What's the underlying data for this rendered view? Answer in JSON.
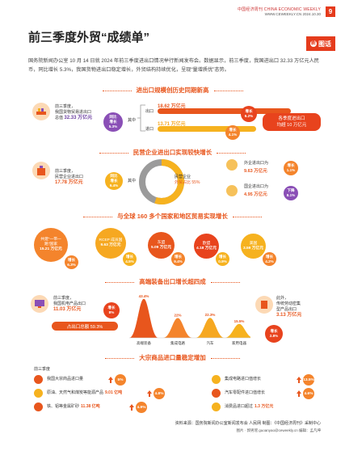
{
  "header": {
    "publication": "中国经济周刊 CHINA ECONOMIC WEEKLY",
    "site_date": "WWW.CEWEEKLY.CN 2024.10.30",
    "page": "9"
  },
  "title": "前三季度外贸“成绩单”",
  "tag": {
    "mark": "新",
    "label": "图话"
  },
  "lead": "国务院新闻办公室 10 月 14 日就 2024 年前三季度进出口情况举行新闻发布会。数据显示，前三季度，我国进出口 32.33 万亿元人民币，同比增长 5.3%，我国货物进出口稳定增长，外贸结构持续优化，呈现“量增质优”态势。",
  "sec1": {
    "heading": "进出口规模创历史同期新高",
    "left_text": [
      "前三季度，",
      "我国货物贸易进出口",
      "总值"
    ],
    "left_value": "32.33 万亿元",
    "left_badge": [
      "同比",
      "增长",
      "5.3%"
    ],
    "qizhong": "其中",
    "export_label": "出口",
    "export_value": "18.62 万亿元",
    "export_badge": [
      "增长",
      "6.2%"
    ],
    "import_label": "进口",
    "import_value": "13.71 万亿元",
    "import_badge": [
      "增长",
      "4.1%"
    ],
    "right_pill": [
      "各季度进出口",
      "均超 10 万亿元"
    ],
    "export_share": 0.576,
    "import_share": 0.424
  },
  "sec2": {
    "heading": "民营企业进出口实现较快增长",
    "left_text": [
      "前三季度，",
      "民营企业进出口"
    ],
    "left_value": "17.78 万亿元",
    "left_badge": [
      "同比",
      "增长",
      "9.4%"
    ],
    "qizhong": "其中",
    "share_text": [
      "民营企业",
      "外贸占比 55%"
    ],
    "share": 0.55,
    "foreign_label": "外企进出口为",
    "foreign_value": "9.63 万亿元",
    "foreign_badge": [
      "增长",
      "1.1%"
    ],
    "state_label": "国企进出口为",
    "state_value": "4.95 万亿元",
    "state_badge": [
      "下降",
      "8.1%"
    ]
  },
  "sec3": {
    "heading": "与全球 160 多个国家和地区贸易实现增长",
    "items": [
      {
        "name": "共建“一带一路”国家",
        "value": "15.21 万亿元",
        "badge": [
          "增长",
          "6.3%"
        ]
      },
      {
        "name": "RCEP 成员国",
        "value": "9.63 万亿元",
        "badge": [
          "增长",
          "4.5%"
        ]
      },
      {
        "name": "东盟",
        "value": "5.09 万亿元",
        "badge": [
          "增长",
          "9.4%"
        ]
      },
      {
        "name": "欧盟",
        "value": "4.18 万亿元",
        "badge": [
          "增长",
          "0.9%"
        ]
      },
      {
        "name": "美国",
        "value": "3.59 万亿元",
        "badge": [
          "增长",
          "4.2%"
        ]
      }
    ]
  },
  "sec4": {
    "heading": "高端装备出口增长超四成",
    "left_text": [
      "前三季度，",
      "我国机电产品出口"
    ],
    "left_value": "11.03 万亿元",
    "left_badge": [
      "增长",
      "8%"
    ],
    "share_pill": "占出口总额 59.3%",
    "right_text": [
      "此外，",
      "传统劳动密集",
      "型产品出口"
    ],
    "right_value": "3.13 万亿元",
    "right_badge": [
      "增长",
      "2.8%"
    ]
  },
  "chart_data": {
    "type": "area",
    "categories": [
      "高端装备",
      "集成电路",
      "汽车",
      "家用电器"
    ],
    "values": [
      43.4,
      22,
      22.3,
      15.5
    ],
    "value_labels": [
      "43.4%",
      "22%",
      "22.3%",
      "15.5%"
    ],
    "colors": [
      "#e8561d",
      "#f4842c",
      "#f6a821",
      "#f6b21f"
    ]
  },
  "sec5": {
    "heading": "大宗商品进口量稳定增加",
    "intro": "前三季度",
    "items": [
      {
        "text": "我国大宗商品进口量",
        "value": "",
        "badge": "5%"
      },
      {
        "text": "原油、天然气和煤炭等能源产品",
        "value": "9.01 亿吨",
        "badge": "4.8%"
      },
      {
        "text": "铁、铝等金属矿砂",
        "value": "11.38 亿吨",
        "badge": "4.9%"
      },
      {
        "text": "集成电路进口值增长",
        "value": "",
        "badge": "13.5%"
      },
      {
        "text": "汽车零配件进口值增长",
        "value": "",
        "badge": "4.6%"
      },
      {
        "text": "消费品进口超过",
        "value": "1.3 万亿元",
        "badge": ""
      }
    ]
  },
  "footer": {
    "source": "资料来源：国务院新闻办公室新闻发布会  人民网  制图：《中国经济周刊》采制中心",
    "editor": "图片 · 郭男瑶 guoanyao@ceweekly.cn    编辑：孟凡坤"
  }
}
